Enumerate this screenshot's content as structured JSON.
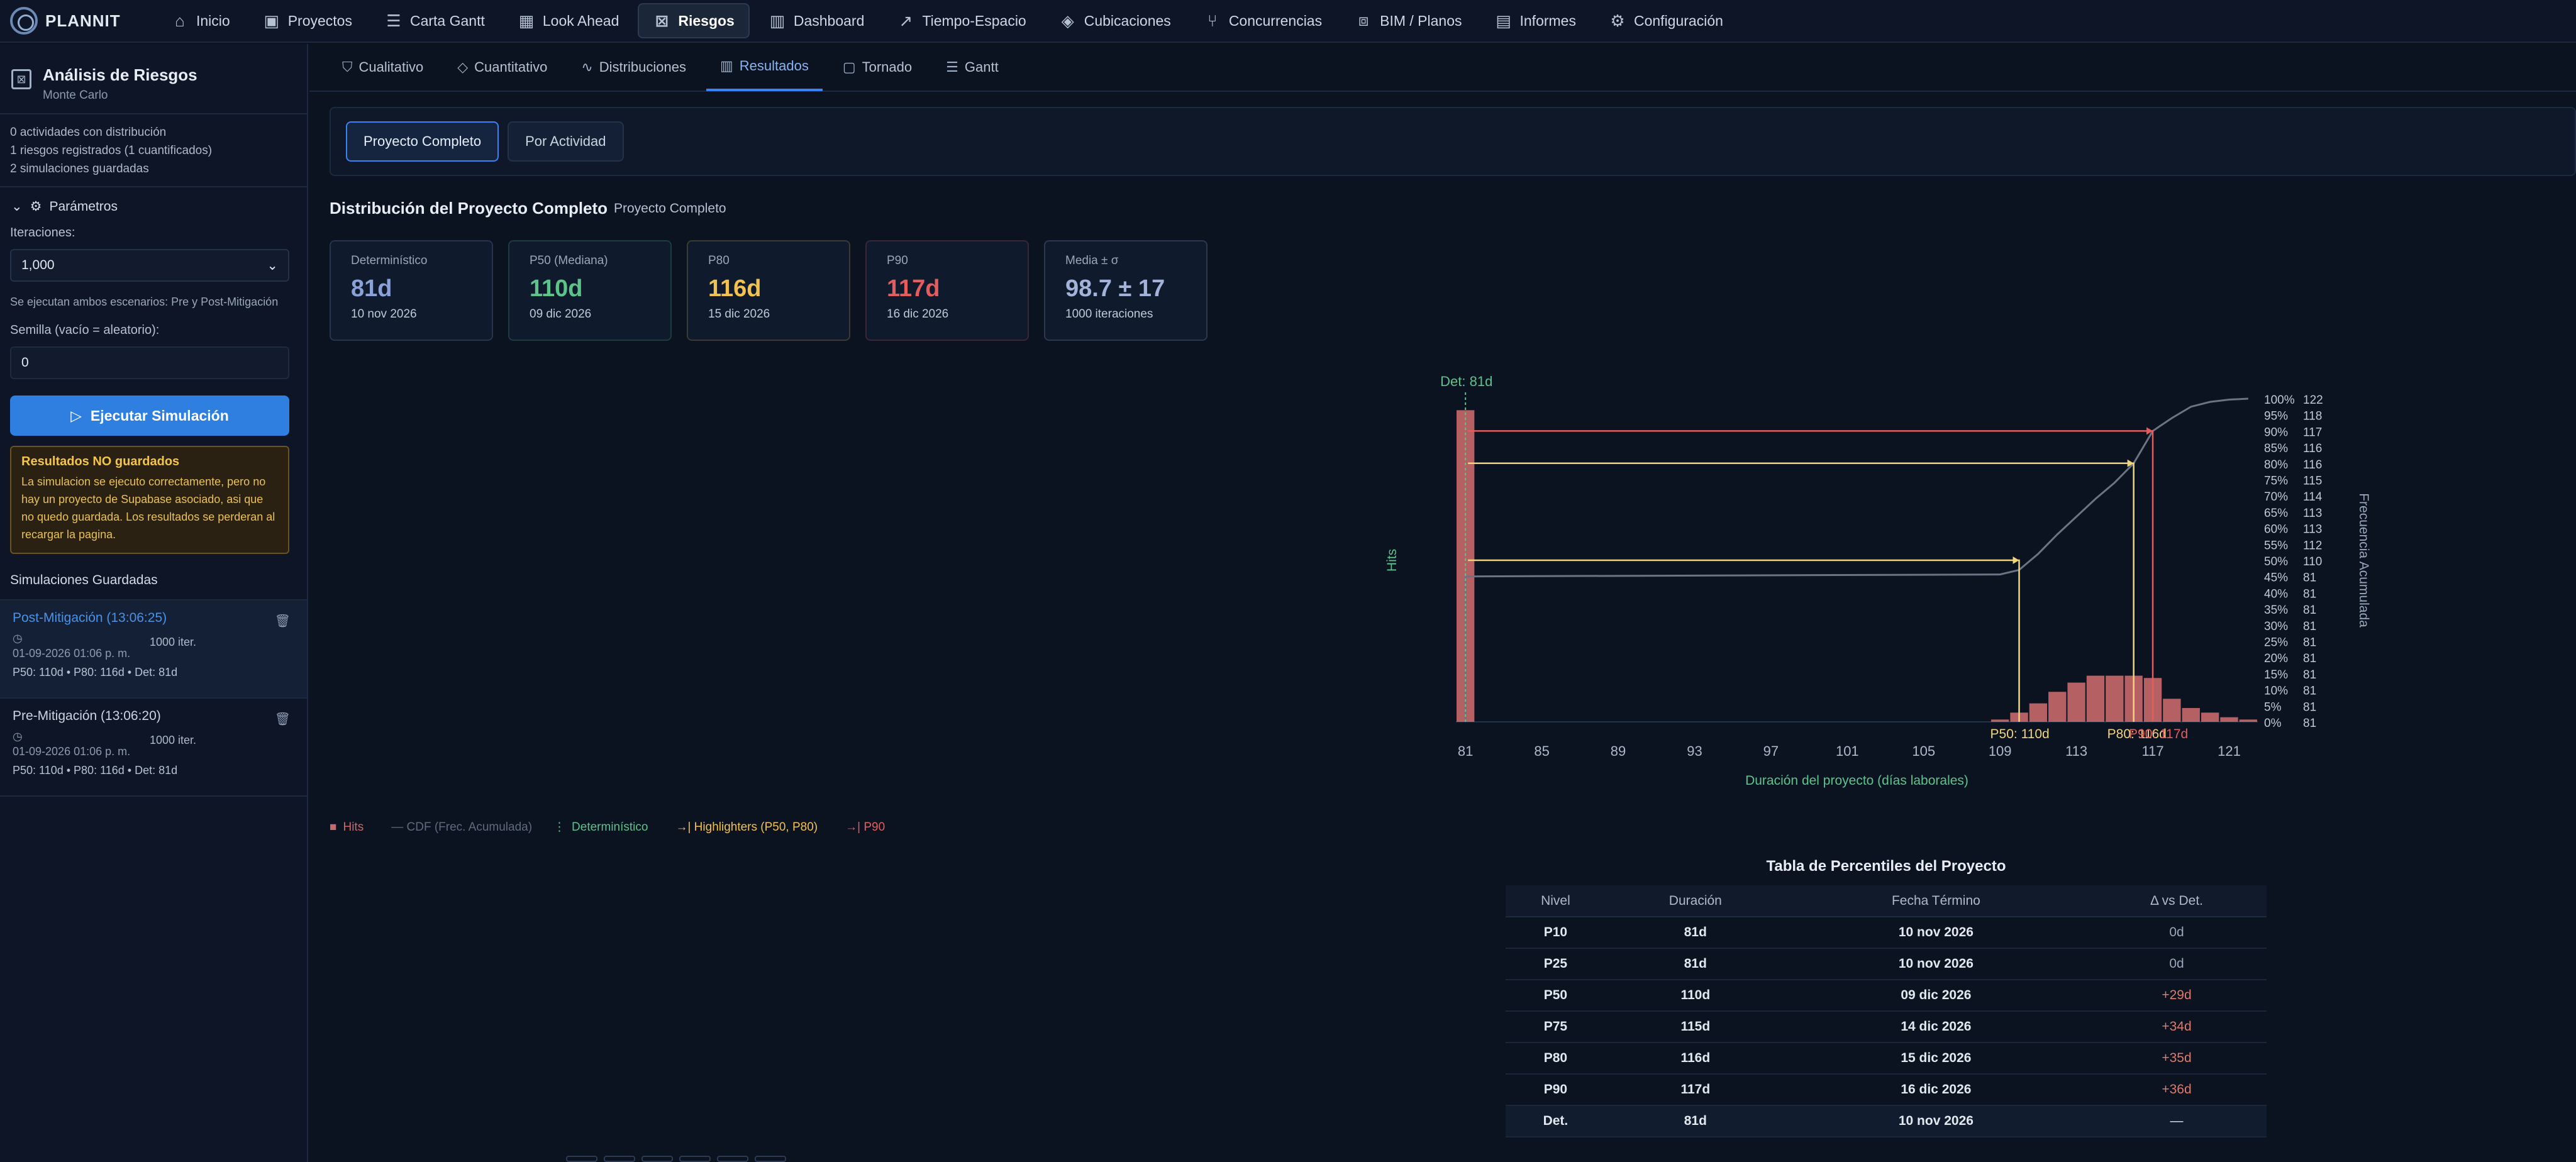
{
  "app": {
    "name": "PLANNIT"
  },
  "nav": [
    {
      "label": "Inicio",
      "icon": "home-icon",
      "glyph": "⌂"
    },
    {
      "label": "Proyectos",
      "icon": "briefcase-icon",
      "glyph": "▣"
    },
    {
      "label": "Carta Gantt",
      "icon": "gantt-icon",
      "glyph": "☰"
    },
    {
      "label": "Look Ahead",
      "icon": "calendar-icon",
      "glyph": "▦"
    },
    {
      "label": "Riesgos",
      "icon": "risk-icon",
      "glyph": "⊠"
    },
    {
      "label": "Dashboard",
      "icon": "bar-chart-icon",
      "glyph": "▥"
    },
    {
      "label": "Tiempo-Espacio",
      "icon": "trend-icon",
      "glyph": "↗"
    },
    {
      "label": "Cubicaciones",
      "icon": "cube-icon",
      "glyph": "◈"
    },
    {
      "label": "Concurrencias",
      "icon": "branch-icon",
      "glyph": "⑂"
    },
    {
      "label": "BIM / Planos",
      "icon": "scan-icon",
      "glyph": "⧈"
    },
    {
      "label": "Informes",
      "icon": "document-icon",
      "glyph": "▤"
    },
    {
      "label": "Configuración",
      "icon": "gear-icon",
      "glyph": "⚙"
    }
  ],
  "nav_active_index": 4,
  "sidebar": {
    "title": "Análisis de Riesgos",
    "subtitle": "Monte Carlo",
    "stats": [
      "0 actividades con distribución",
      "1 riesgos registrados (1 cuantificados)",
      "2 simulaciones guardadas"
    ],
    "params_label": "Parámetros",
    "iterations_label": "Iteraciones:",
    "iterations_value": "1,000",
    "scenario_note": "Se ejecutan ambos escenarios: Pre y Post-Mitigación",
    "seed_label": "Semilla (vacío = aleatorio):",
    "seed_value": "0",
    "run_button": "Ejecutar Simulación",
    "warning_title": "Resultados NO guardados",
    "warning_text": "La simulacion se ejecuto correctamente, pero no hay un proyecto de Supabase asociado, asi que no quedo guardada. Los resultados se perderan al recargar la pagina.",
    "saved_title": "Simulaciones Guardadas",
    "saved": [
      {
        "name": "Post-Mitigación (13:06:25)",
        "iter": "1000 iter.",
        "date": "01-09-2026 01:06 p. m.",
        "stats": "P50: 110d • P80: 116d • Det: 81d"
      },
      {
        "name": "Pre-Mitigación (13:06:20)",
        "iter": "1000 iter.",
        "date": "01-09-2026 01:06 p. m.",
        "stats": "P50: 110d • P80: 116d • Det: 81d"
      }
    ]
  },
  "subtabs": [
    {
      "label": "Cualitativo",
      "icon": "shield-icon",
      "glyph": "⛉"
    },
    {
      "label": "Cuantitativo",
      "icon": "shield-outline-icon",
      "glyph": "◇"
    },
    {
      "label": "Distribuciones",
      "icon": "activity-icon",
      "glyph": "∿"
    },
    {
      "label": "Resultados",
      "icon": "bar-chart-icon",
      "glyph": "▥"
    },
    {
      "label": "Tornado",
      "icon": "square-icon",
      "glyph": "▢"
    },
    {
      "label": "Gantt",
      "icon": "list-icon",
      "glyph": "☰"
    }
  ],
  "subtab_active_index": 3,
  "scope": {
    "complete": "Proyecto Completo",
    "by_activity": "Por Actividad"
  },
  "distribution": {
    "title": "Distribución del Proyecto Completo",
    "subtitle": "Proyecto Completo"
  },
  "cards": [
    {
      "label": "Determinístico",
      "value": "81d",
      "date": "10 nov 2026",
      "color": "#8aa2d8"
    },
    {
      "label": "P50 (Mediana)",
      "value": "110d",
      "date": "09 dic 2026",
      "color": "#5cc48a"
    },
    {
      "label": "P80",
      "value": "116d",
      "date": "15 dic 2026",
      "color": "#f2c14e"
    },
    {
      "label": "P90",
      "value": "117d",
      "date": "16 dic 2026",
      "color": "#e35d5d"
    },
    {
      "label": "Media ± σ",
      "value": "98.7 ± 17",
      "date": "1000 iteraciones",
      "color": "#a3b2d8"
    }
  ],
  "chart_data": {
    "type": "bar",
    "xlabel": "Duración del proyecto (días laborales)",
    "ylabel": "Hits",
    "y2label": "Frecuencia Acumulada",
    "x_ticks": [
      81,
      85,
      89,
      93,
      97,
      101,
      105,
      109,
      113,
      117,
      121
    ],
    "xlim": [
      80.5,
      122.5
    ],
    "hist": {
      "x": [
        81,
        109,
        110,
        111,
        112,
        113,
        114,
        115,
        116,
        117,
        118,
        119,
        120,
        121,
        122
      ],
      "hits": [
        270,
        2,
        8,
        16,
        26,
        34,
        40,
        40,
        40,
        38,
        20,
        12,
        8,
        4,
        2
      ]
    },
    "hist_ymax": 280,
    "cdf_levels": [
      "100%",
      "95%",
      "90%",
      "85%",
      "80%",
      "75%",
      "70%",
      "65%",
      "60%",
      "55%",
      "50%",
      "45%",
      "40%",
      "35%",
      "30%",
      "25%",
      "20%",
      "15%",
      "10%",
      "5%",
      "0%"
    ],
    "cdf_values": [
      122,
      118,
      117,
      116,
      116,
      115,
      114,
      113,
      113,
      112,
      110,
      81,
      81,
      81,
      81,
      81,
      81,
      81,
      81,
      81,
      81
    ],
    "cdf_curve": {
      "x": [
        81,
        81,
        109,
        110,
        111,
        112,
        113,
        114,
        115,
        116,
        117,
        118,
        119,
        120,
        121,
        122
      ],
      "y": [
        0,
        0.45,
        0.456,
        0.47,
        0.52,
        0.58,
        0.635,
        0.69,
        0.74,
        0.8,
        0.9,
        0.94,
        0.975,
        0.99,
        0.997,
        1.0
      ]
    },
    "deterministic": {
      "x": 81,
      "label": "Det: 81d"
    },
    "highlighters": [
      {
        "x": 110,
        "p": 0.5,
        "label": "P50: 110d",
        "color": "#f2d47a"
      },
      {
        "x": 116,
        "p": 0.8,
        "label": "P80: 116d",
        "color": "#f2d47a"
      },
      {
        "x": 117,
        "p": 0.9,
        "label": "P90: 117d",
        "color": "#e35d5d"
      }
    ]
  },
  "legend": [
    {
      "label": "Hits",
      "color": "#c86a6a",
      "marker": "■"
    },
    {
      "label": "— CDF (Frec. Acumulada)",
      "color": "#5f6b7d",
      "marker": ""
    },
    {
      "label": "Determinístico",
      "color": "#5cc48a",
      "marker": "⋮"
    },
    {
      "label": "→| Highlighters (P50, P80)",
      "color": "#f2c14e",
      "marker": ""
    },
    {
      "label": "→| P90",
      "color": "#e35d5d",
      "marker": ""
    }
  ],
  "percentile_table": {
    "title": "Tabla de Percentiles del Proyecto",
    "headers": [
      "Nivel",
      "Duración",
      "Fecha Término",
      "Δ vs Det."
    ],
    "rows": [
      [
        "P10",
        "81d",
        "10 nov 2026",
        "0d"
      ],
      [
        "P25",
        "81d",
        "10 nov 2026",
        "0d"
      ],
      [
        "P50",
        "110d",
        "09 dic 2026",
        "+29d"
      ],
      [
        "P75",
        "115d",
        "14 dic 2026",
        "+34d"
      ],
      [
        "P80",
        "116d",
        "15 dic 2026",
        "+35d"
      ],
      [
        "P90",
        "117d",
        "16 dic 2026",
        "+36d"
      ],
      [
        "Det.",
        "81d",
        "10 nov 2026",
        "—"
      ]
    ]
  }
}
